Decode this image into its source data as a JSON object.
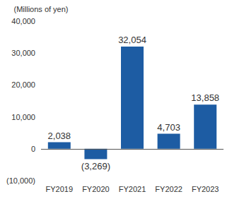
{
  "chart_data": {
    "type": "bar",
    "y_axis_label": "(Millions of yen)",
    "categories": [
      "FY2019",
      "FY2020",
      "FY2021",
      "FY2022",
      "FY2023"
    ],
    "values": [
      2038,
      -3269,
      32054,
      4703,
      13858
    ],
    "value_labels": [
      "2,038",
      "(3,269)",
      "32,054",
      "4,703",
      "13,858"
    ],
    "color": "#1d5ca3",
    "ylim": [
      -10000,
      40000
    ],
    "yticks": [
      {
        "value": -10000,
        "label": "(10,000)"
      },
      0,
      {
        "value": 10000,
        "label": "10,000"
      },
      {
        "value": 20000,
        "label": "20,000"
      },
      {
        "value": 30000,
        "label": "30,000"
      },
      {
        "value": 40000,
        "label": "40,000"
      }
    ],
    "grid": false,
    "data_labels": true
  }
}
